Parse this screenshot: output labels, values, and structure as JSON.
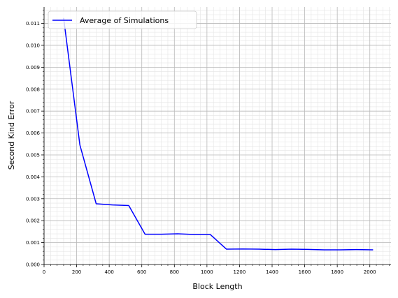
{
  "chart_data": {
    "type": "line",
    "title": "",
    "xlabel": "Block Length",
    "ylabel": "Second Kind Error",
    "xlim": [
      0,
      2130
    ],
    "ylim": [
      0,
      0.01175
    ],
    "x_ticks": [
      "0",
      "200",
      "400",
      "600",
      "800",
      "1000",
      "1200",
      "1400",
      "1600",
      "1800",
      "2000"
    ],
    "y_ticks": [
      "0.000",
      "0.001",
      "0.002",
      "0.003",
      "0.004",
      "0.005",
      "0.006",
      "0.007",
      "0.008",
      "0.009",
      "0.010",
      "0.011"
    ],
    "grid": true,
    "legend_position": "top-left",
    "series": [
      {
        "name": "Average of Simulations",
        "color": "#0000ff",
        "x": [
          120,
          220,
          320,
          420,
          520,
          620,
          720,
          820,
          920,
          1020,
          1120,
          1220,
          1320,
          1420,
          1520,
          1620,
          1720,
          1820,
          1920,
          2020
        ],
        "y": [
          0.01125,
          0.00545,
          0.00277,
          0.00272,
          0.00269,
          0.00138,
          0.00138,
          0.0014,
          0.00137,
          0.00137,
          0.0007,
          0.00071,
          0.0007,
          0.00068,
          0.0007,
          0.00069,
          0.00067,
          0.00067,
          0.00068,
          0.00067
        ]
      }
    ]
  }
}
